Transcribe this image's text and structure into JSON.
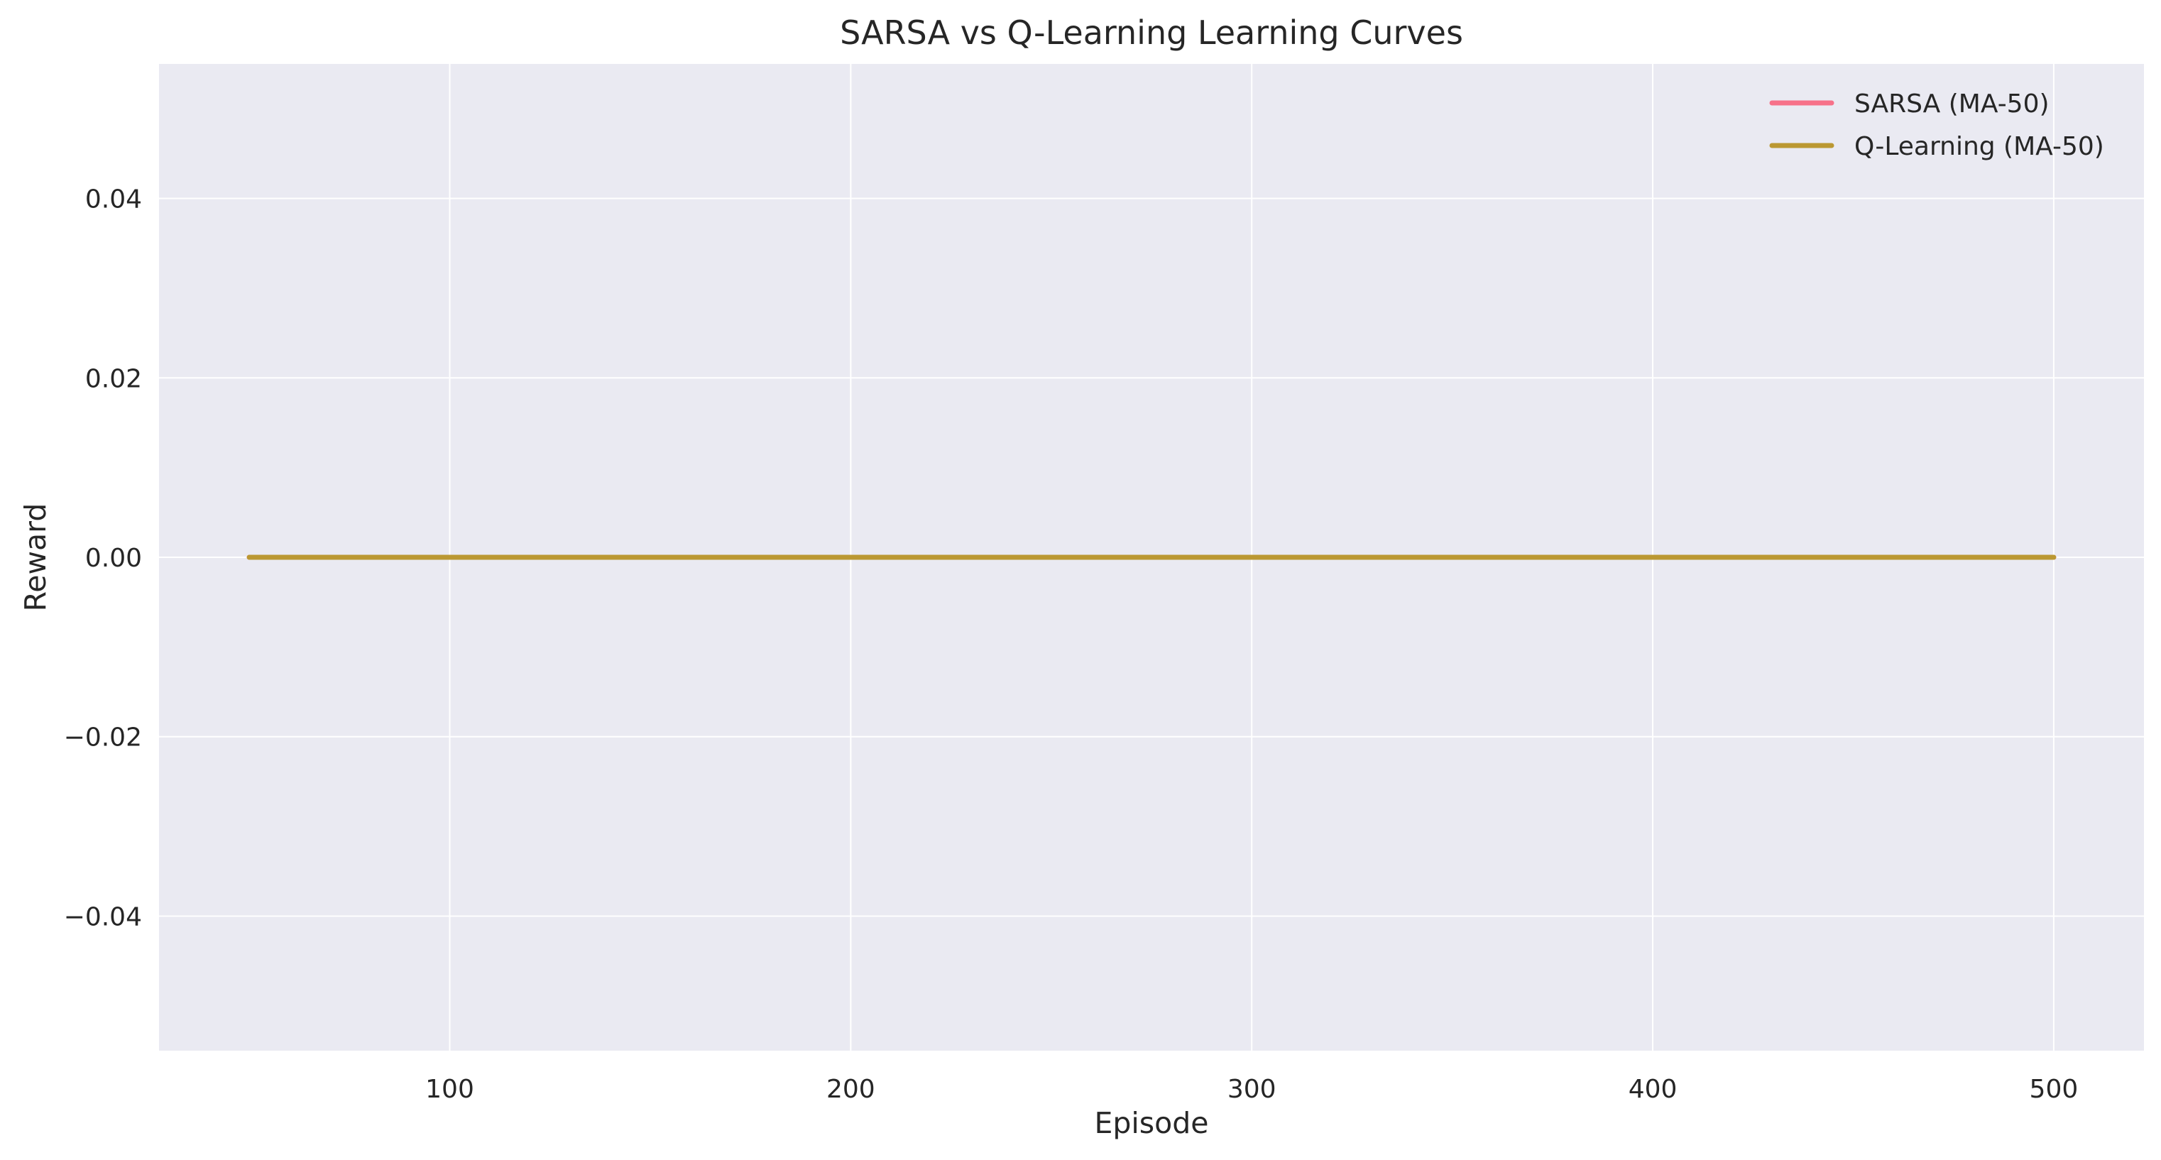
{
  "chart_data": {
    "type": "line",
    "title": "SARSA vs Q-Learning Learning Curves",
    "xlabel": "Episode",
    "ylabel": "Reward",
    "xlim": [
      27.5,
      522.5
    ],
    "ylim": [
      -0.055,
      0.055
    ],
    "xticks": [
      100,
      200,
      300,
      400,
      500
    ],
    "xtick_labels": [
      "100",
      "200",
      "300",
      "400",
      "500"
    ],
    "yticks": [
      0.04,
      0.02,
      0.0,
      -0.02,
      -0.04
    ],
    "ytick_labels": [
      "0.04",
      "0.02",
      "0.00",
      "−0.02",
      "−0.04"
    ],
    "grid": true,
    "legend_position": "top-right",
    "series": [
      {
        "name": "SARSA (MA-50)",
        "color": "#f77189",
        "x": [
          50,
          500
        ],
        "y": [
          0,
          0
        ]
      },
      {
        "name": "Q-Learning (MA-50)",
        "color": "#bb9832",
        "x": [
          50,
          500
        ],
        "y": [
          0,
          0
        ]
      }
    ],
    "background_color": "#eaeaf2",
    "grid_color": "#ffffff"
  }
}
